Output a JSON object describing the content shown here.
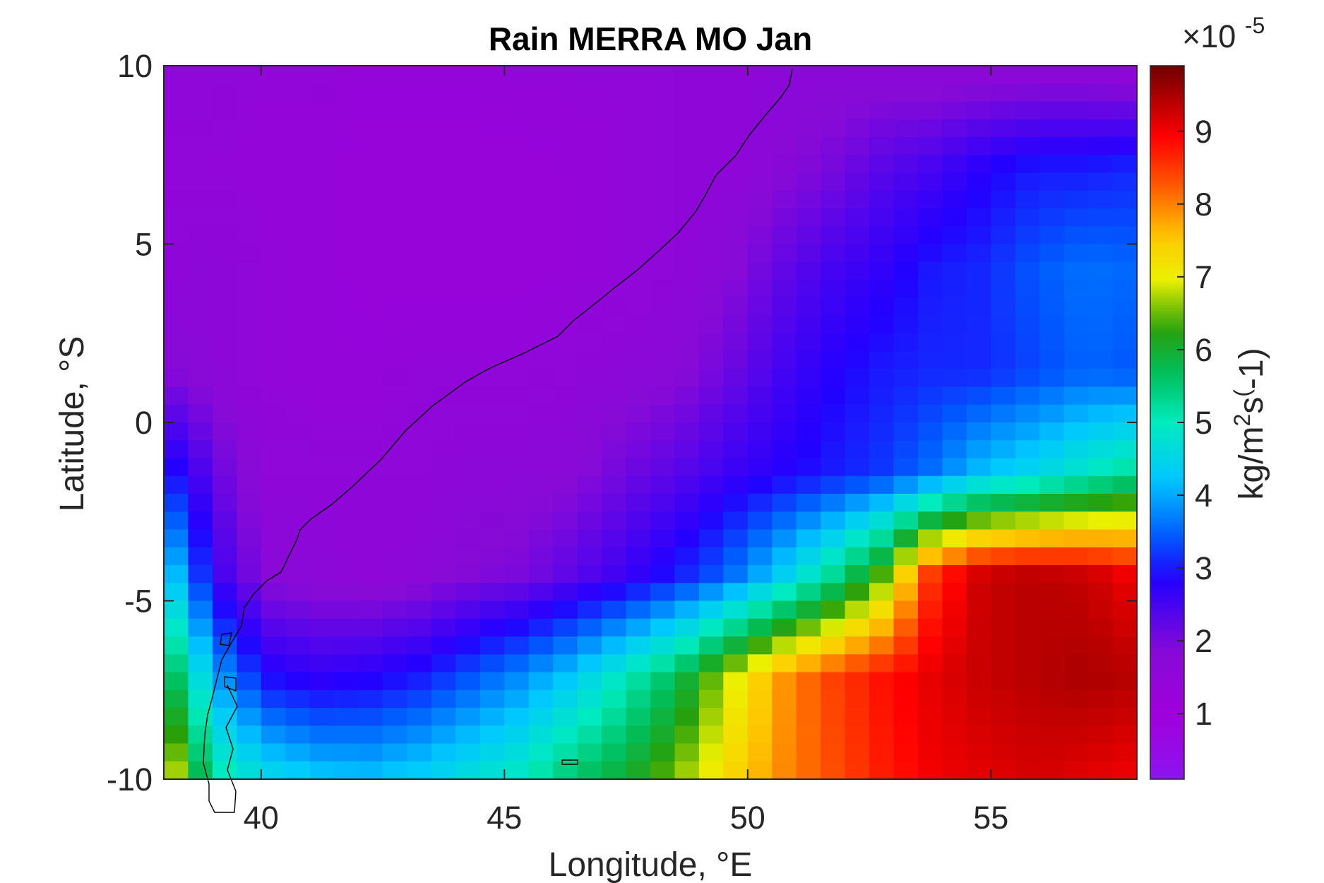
{
  "chart_data": {
    "type": "heatmap",
    "title": "Rain MERRA MO Jan",
    "xlabel": "Longitude, °E",
    "ylabel": "Latitude, °S",
    "xlim": [
      38,
      58
    ],
    "ylim": [
      -10,
      10
    ],
    "xticks": [
      40,
      45,
      50,
      55
    ],
    "yticks": [
      -10,
      -5,
      0,
      5,
      10
    ],
    "x_tick_labels": [
      "40",
      "45",
      "50",
      "55"
    ],
    "y_tick_labels": [
      "-10",
      "-5",
      "0",
      "5",
      "10"
    ],
    "colorbar": {
      "label": "kg/m^2s^(-1)",
      "label_parts": [
        "kg/m",
        "2",
        "s",
        "(",
        "-1)"
      ],
      "multiplier_prefix": "×10",
      "multiplier_exponent": "-5",
      "clim": [
        0.1,
        9.9
      ],
      "ticks": [
        1,
        2,
        3,
        4,
        5,
        6,
        7,
        8,
        9
      ],
      "tick_labels": [
        "1",
        "2",
        "3",
        "4",
        "5",
        "6",
        "7",
        "8",
        "9"
      ],
      "colormap": "hsv-reversed (purple → blue → cyan → green → yellow → red → dark red)"
    },
    "grid": false,
    "coastline": true,
    "field_description": "Rainfall field in units of 1e-5 kg/m^2/s on a 0.5° grid. The printed labels are followed unchanged; the colours show values near 1.2–1.8 over the northern and central area, a blue band of values near 3 in the east and south, and values rising to about 9.5 in the south-east corner (lon 54–58, lat -10 to -4.5).",
    "grid_resolution_deg": 0.5,
    "rows_from_north_sample_values": [
      [
        1.6,
        1.6,
        1.5,
        1.5,
        1.4,
        1.4,
        1.4,
        1.5,
        1.5,
        1.5,
        1.6,
        1.6,
        1.7,
        1.7,
        1.7,
        1.6,
        1.6,
        1.6,
        1.6,
        1.5
      ],
      [
        1.5,
        1.5,
        1.4,
        1.4,
        1.3,
        1.3,
        1.3,
        1.3,
        1.4,
        1.5,
        1.6,
        1.6,
        1.8,
        2.0,
        2.3,
        2.5,
        2.8,
        3.0,
        3.0,
        3.1
      ],
      [
        1.6,
        1.7,
        1.5,
        1.4,
        1.3,
        1.3,
        1.3,
        1.3,
        1.4,
        1.5,
        1.6,
        1.8,
        2.2,
        2.5,
        2.7,
        3.0,
        3.1,
        3.4,
        3.6,
        3.5
      ],
      [
        1.9,
        1.7,
        1.5,
        1.4,
        1.4,
        1.5,
        1.5,
        1.5,
        1.6,
        1.7,
        1.8,
        2.1,
        2.5,
        2.8,
        3.0,
        3.1,
        3.1,
        3.3,
        3.5,
        3.4
      ],
      [
        3.1,
        2.2,
        1.6,
        1.6,
        1.6,
        1.6,
        1.7,
        1.7,
        1.8,
        2.1,
        2.3,
        2.6,
        2.8,
        3.0,
        3.2,
        3.6,
        4.2,
        4.5,
        4.9,
        5.3
      ],
      [
        4.6,
        2.6,
        1.8,
        1.7,
        1.6,
        1.7,
        1.9,
        2.0,
        2.3,
        2.6,
        3.0,
        3.5,
        4.3,
        5.2,
        6.4,
        8.6,
        9.3,
        9.4,
        9.3,
        9.0
      ],
      [
        6.1,
        4.0,
        2.9,
        2.7,
        2.8,
        3.0,
        3.4,
        3.8,
        4.3,
        5.0,
        5.7,
        6.8,
        7.8,
        8.4,
        8.8,
        9.1,
        9.3,
        9.4,
        9.5,
        9.4
      ],
      [
        7.3,
        5.2,
        4.6,
        4.3,
        4.2,
        4.4,
        4.7,
        5.0,
        5.6,
        6.0,
        6.6,
        7.3,
        7.9,
        8.3,
        8.7,
        9.0,
        9.1,
        9.2,
        9.1,
        9.0
      ]
    ]
  }
}
